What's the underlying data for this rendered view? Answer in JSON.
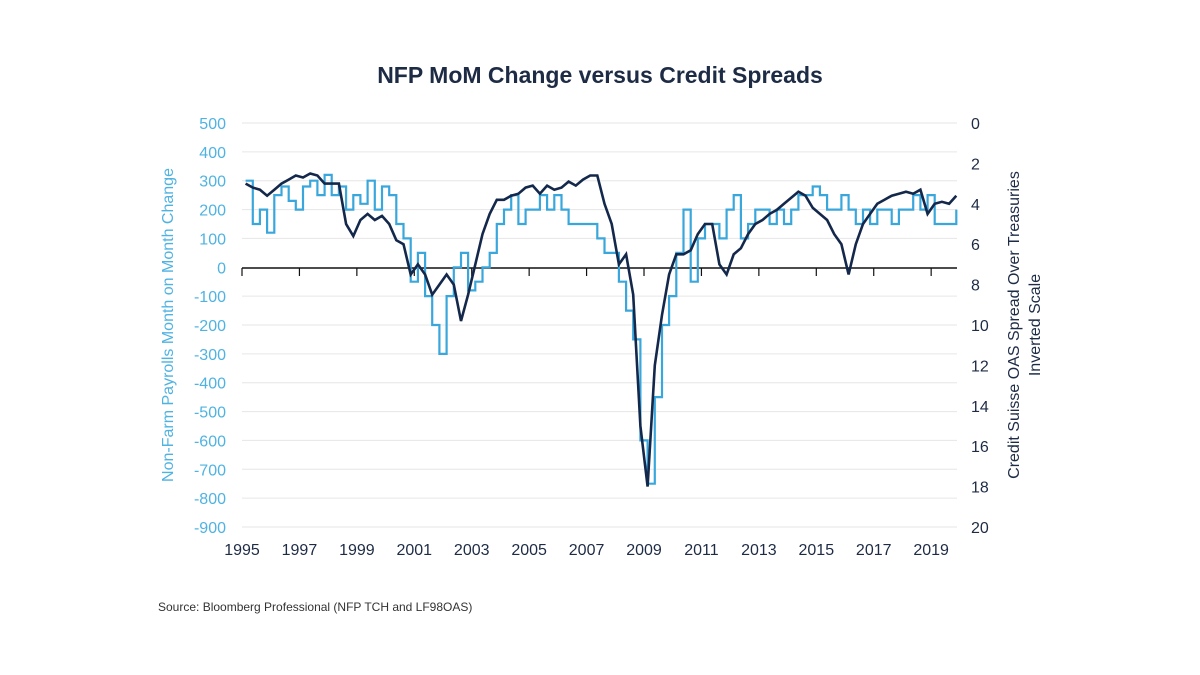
{
  "chart_data": {
    "type": "line",
    "title": "NFP MoM Change versus Credit Spreads",
    "source": "Source: Bloomberg Professional (NFP TCH and LF98OAS)",
    "x_ticks": [
      "1995",
      "1997",
      "1999",
      "2001",
      "2003",
      "2005",
      "2007",
      "2009",
      "2011",
      "2013",
      "2015",
      "2017",
      "2019"
    ],
    "xlim": [
      1995,
      2019.9
    ],
    "y_left": {
      "label": "Non-Farm Payrolls Month on Month Change",
      "ylim": [
        -900,
        500
      ],
      "ticks": [
        "500",
        "400",
        "300",
        "200",
        "100",
        "0",
        "-100",
        "-200",
        "-300",
        "-400",
        "-500",
        "-600",
        "-700",
        "-800",
        "-900"
      ]
    },
    "y_right": {
      "label": "Credit Suisse OAS Spread Over Treasuries",
      "label2": "Inverted Scale",
      "ylim": [
        0,
        20
      ],
      "inverted": true,
      "ticks": [
        "0",
        "2",
        "4",
        "6",
        "8",
        "10",
        "12",
        "14",
        "16",
        "18",
        "20"
      ]
    },
    "grid": true,
    "colors": {
      "nfp": "#3aa7dc",
      "spread": "#14284b",
      "left_axis": "#4fb3e2",
      "right_axis": "#1d2b45",
      "grid": "#e6e6e6"
    },
    "x_quarters_start": 1995,
    "series": [
      {
        "axis": "left",
        "values": [
          300,
          150,
          200,
          120,
          250,
          280,
          230,
          200,
          280,
          300,
          250,
          320,
          250,
          280,
          200,
          250,
          220,
          300,
          200,
          280,
          250,
          150,
          100,
          -50,
          50,
          -100,
          -200,
          -300,
          -100,
          0,
          50,
          -80,
          -50,
          0,
          50,
          150,
          200,
          250,
          150,
          200,
          200,
          250,
          200,
          250,
          200,
          150,
          150,
          150,
          150,
          100,
          50,
          50,
          -50,
          -150,
          -250,
          -600,
          -750,
          -450,
          -200,
          -100,
          50,
          200,
          -50,
          100,
          150,
          150,
          100,
          200,
          250,
          100,
          150,
          200,
          200,
          150,
          200,
          150,
          200,
          250,
          250,
          280,
          250,
          200,
          200,
          250,
          200,
          150,
          200,
          150,
          200,
          200,
          150,
          200,
          200,
          250,
          200,
          250,
          150,
          150,
          150,
          200
        ]
      },
      {
        "axis": "right",
        "values": [
          3.0,
          3.2,
          3.3,
          3.6,
          3.3,
          3.0,
          2.8,
          2.6,
          2.7,
          2.5,
          2.6,
          3.0,
          3.0,
          3.0,
          5.0,
          5.6,
          4.8,
          4.5,
          4.8,
          4.6,
          5.0,
          5.8,
          6.0,
          7.5,
          7.0,
          7.5,
          8.5,
          8.0,
          7.5,
          8.0,
          9.8,
          8.5,
          7.0,
          5.5,
          4.5,
          3.8,
          3.8,
          3.6,
          3.5,
          3.2,
          3.1,
          3.5,
          3.1,
          3.3,
          3.2,
          2.9,
          3.1,
          2.8,
          2.6,
          2.6,
          4.0,
          5.0,
          7.0,
          6.5,
          8.5,
          15.0,
          18.0,
          12.0,
          9.5,
          7.5,
          6.5,
          6.5,
          6.3,
          5.5,
          5.0,
          5.0,
          7.0,
          7.5,
          6.5,
          6.2,
          5.5,
          5.0,
          4.8,
          4.5,
          4.3,
          4.0,
          3.7,
          3.4,
          3.6,
          4.2,
          4.5,
          4.8,
          5.5,
          6.0,
          7.5,
          6.0,
          5.0,
          4.5,
          4.0,
          3.8,
          3.6,
          3.5,
          3.4,
          3.5,
          3.3,
          4.5,
          4.0,
          3.9,
          4.0,
          3.6
        ]
      }
    ]
  }
}
